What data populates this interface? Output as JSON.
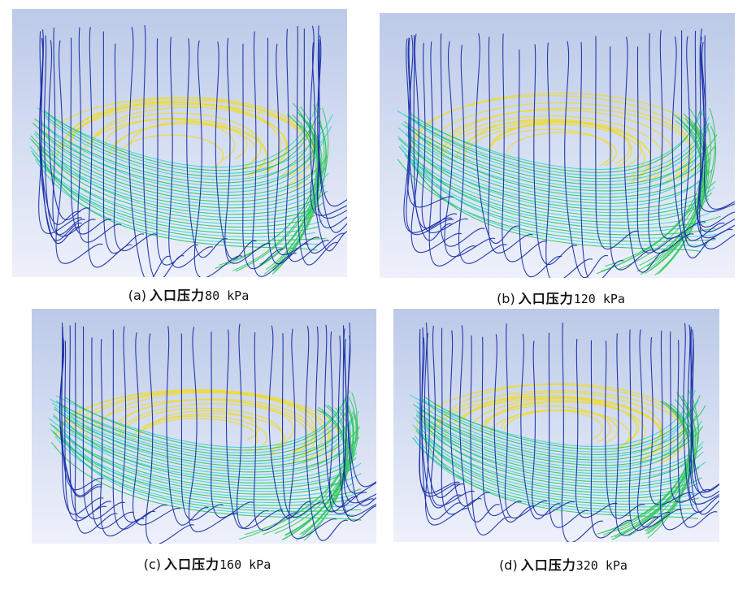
{
  "colors": {
    "background_top": "#bccae8",
    "background_bottom": "#eef1fb",
    "streamline_blue": "#1a2fa8",
    "streamline_cyan": "#33d6d9",
    "streamline_green": "#2fc85a",
    "streamline_yellow": "#f0dc2a"
  },
  "panels": [
    {
      "id": "a",
      "label": "(a)",
      "caption_text": "入口压力",
      "pressure": "80 kPa"
    },
    {
      "id": "b",
      "label": "(b)",
      "caption_text": "入口压力",
      "pressure": "120 kPa"
    },
    {
      "id": "c",
      "label": "(c)",
      "caption_text": "入口压力",
      "pressure": "160 kPa"
    },
    {
      "id": "d",
      "label": "(d)",
      "caption_text": "入口压力",
      "pressure": "320 kPa"
    }
  ]
}
